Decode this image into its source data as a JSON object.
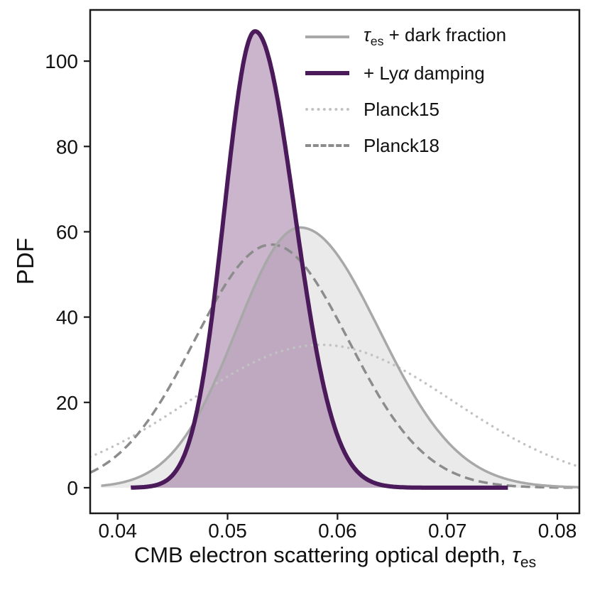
{
  "chart_data": {
    "type": "line",
    "title": "",
    "xlabel": {
      "main": "CMB electron scattering optical depth, ",
      "tau": "τ",
      "sub": "es"
    },
    "ylabel": "PDF",
    "xlim": [
      0.0375,
      0.082
    ],
    "ylim": [
      -6,
      112
    ],
    "grid": false,
    "frame_color": "#1a1a1a",
    "xticks": {
      "values": [
        0.04,
        0.05,
        0.06,
        0.07,
        0.08
      ],
      "labels": [
        "0.04",
        "0.05",
        "0.06",
        "0.07",
        "0.08"
      ]
    },
    "yticks": {
      "values": [
        0,
        20,
        40,
        60,
        80,
        100
      ],
      "labels": [
        "0",
        "20",
        "40",
        "60",
        "80",
        "100"
      ]
    },
    "draw_order": [
      2,
      3,
      0,
      1
    ],
    "series": [
      {
        "name": "tau-es-plus-dark-fraction",
        "label": "τes + dark fraction",
        "color": "#a8a8a8",
        "style": "solid",
        "width": 3.5,
        "fill": "#e6e6e6",
        "fill_opacity": 0.85,
        "peak": 61,
        "mean": 0.0566,
        "sigma_left": 0.0058,
        "sigma_right": 0.0072,
        "range": [
          0.0385,
          0.082
        ]
      },
      {
        "name": "plus-lya-damping",
        "label": "+ Lyα damping",
        "color": "#4b1a5b",
        "style": "solid",
        "width": 6,
        "fill": "#8a5b8d",
        "fill_opacity": 0.45,
        "peak": 107,
        "mean": 0.0525,
        "sigma_left": 0.0028,
        "sigma_right": 0.0036,
        "range": [
          0.0412,
          0.0755
        ]
      },
      {
        "name": "planck15",
        "label": "Planck15",
        "color": "#c2c2c2",
        "style": "dotted",
        "width": 3.5,
        "peak": 33.5,
        "mean": 0.0585,
        "sigma_left": 0.012,
        "sigma_right": 0.012,
        "range": [
          0.0375,
          0.082
        ]
      },
      {
        "name": "planck18",
        "label": "Planck18",
        "color": "#8c8c8c",
        "style": "dashed",
        "width": 3.5,
        "peak": 57,
        "mean": 0.054,
        "sigma_left": 0.007,
        "sigma_right": 0.007,
        "range": [
          0.0375,
          0.082
        ]
      }
    ],
    "legend": {
      "position": "upper right",
      "items": [
        {
          "tau": "τ",
          "sub": "es",
          "rest": " + dark fraction"
        },
        {
          "pre": "+ Ly",
          "alpha": "α",
          "rest": " damping"
        },
        {
          "label": "Planck15"
        },
        {
          "label": "Planck18"
        }
      ]
    }
  }
}
